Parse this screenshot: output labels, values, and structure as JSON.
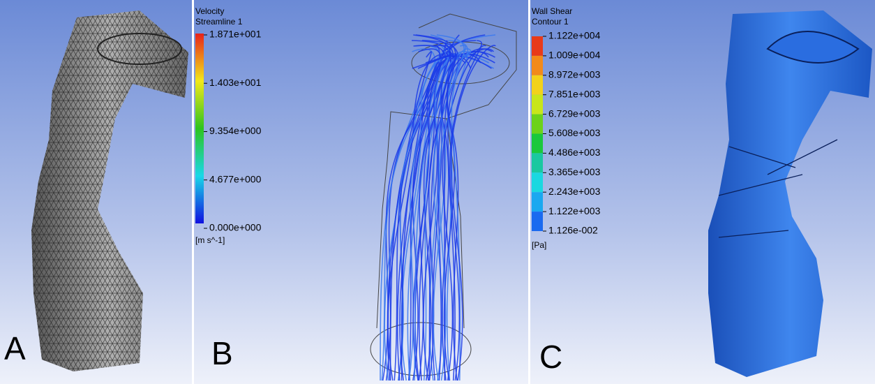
{
  "panels": [
    {
      "label": "A"
    },
    {
      "label": "B",
      "legend": {
        "title": "Velocity",
        "subtitle": "Streamline 1",
        "ticks": [
          "1.871e+001",
          "1.403e+001",
          "9.354e+000",
          "4.677e+000",
          "0.000e+000"
        ],
        "unit": "[m s^-1]"
      }
    },
    {
      "label": "C",
      "legend": {
        "title": "Wall Shear",
        "subtitle": "Contour 1",
        "ticks": [
          "1.122e+004",
          "1.009e+004",
          "8.972e+003",
          "7.851e+003",
          "6.729e+003",
          "5.608e+003",
          "4.486e+003",
          "3.365e+003",
          "2.243e+003",
          "1.122e+003",
          "1.126e-002"
        ],
        "unit": "[Pa]"
      }
    }
  ]
}
